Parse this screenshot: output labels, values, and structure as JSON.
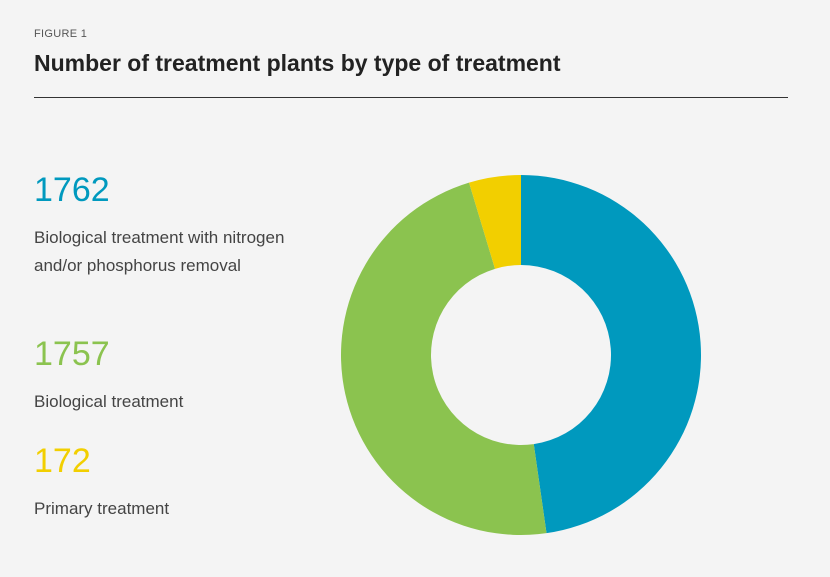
{
  "figure": {
    "eyebrow": "FIGURE 1",
    "title": "Number of treatment plants by type of treatment"
  },
  "legend": [
    {
      "value": "1762",
      "label": "Biological treatment with nitrogen and/or phosphorus removal",
      "color": "#0099be"
    },
    {
      "value": "1757",
      "label": "Biological treatment",
      "color": "#8bc34f"
    },
    {
      "value": "172",
      "label": "Primary treatment",
      "color": "#f2cf00"
    }
  ],
  "chart_data": {
    "type": "pie",
    "variant": "donut",
    "title": "Number of treatment plants by type of treatment",
    "categories": [
      "Biological treatment with nitrogen and/or phosphorus removal",
      "Biological treatment",
      "Primary treatment"
    ],
    "values": [
      1762,
      1757,
      172
    ],
    "colors": [
      "#0099be",
      "#8bc34f",
      "#f2cf00"
    ],
    "start": "top",
    "direction": "clockwise",
    "legend_position": "left"
  }
}
